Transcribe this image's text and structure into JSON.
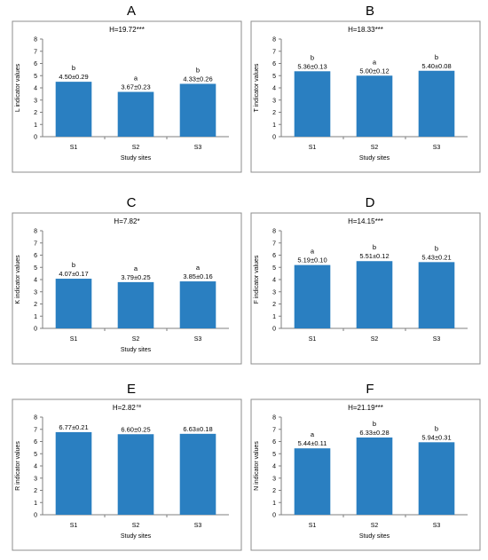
{
  "chart_data": [
    {
      "type": "bar",
      "panel_letter": "A",
      "title": "H=19.72***",
      "categories": [
        "S1",
        "S2",
        "S3"
      ],
      "values": [
        4.5,
        3.67,
        4.33
      ],
      "value_labels": [
        "4.50±0.29",
        "3.67±0.23",
        "4.33±0.26"
      ],
      "significance_letters": [
        "b",
        "a",
        "b"
      ],
      "xlabel": "Study sites",
      "ylabel": "L indicator values",
      "ylim": [
        0,
        8
      ],
      "yticks": [
        "0",
        "1",
        "2",
        "3",
        "4",
        "5",
        "6",
        "7",
        "8"
      ],
      "bar_color": "#2a7fc1",
      "grid": false,
      "legend": "none"
    },
    {
      "type": "bar",
      "panel_letter": "B",
      "title": "H=18.33***",
      "categories": [
        "S1",
        "S2",
        "S3"
      ],
      "values": [
        5.36,
        5.0,
        5.4
      ],
      "value_labels": [
        "5.36±0.13",
        "5.00±0.12",
        "5.40±0.08"
      ],
      "significance_letters": [
        "b",
        "a",
        "b"
      ],
      "xlabel": "Study sites",
      "ylabel": "T indicator values",
      "ylim": [
        0,
        8
      ],
      "yticks": [
        "0",
        "1",
        "2",
        "3",
        "4",
        "5",
        "6",
        "7",
        "8"
      ],
      "bar_color": "#2a7fc1",
      "grid": false,
      "legend": "none"
    },
    {
      "type": "bar",
      "panel_letter": "C",
      "title": "H=7.82*",
      "categories": [
        "S1",
        "S2",
        "S3"
      ],
      "values": [
        4.07,
        3.79,
        3.85
      ],
      "value_labels": [
        "4.07±0.17",
        "3.79±0.25",
        "3.85±0.16"
      ],
      "significance_letters": [
        "b",
        "a",
        "a"
      ],
      "xlabel": "Study sites",
      "ylabel": "K indicator values",
      "ylim": [
        0,
        8
      ],
      "yticks": [
        "0",
        "1",
        "2",
        "3",
        "4",
        "5",
        "6",
        "7",
        "8"
      ],
      "bar_color": "#2a7fc1",
      "grid": false,
      "legend": "none"
    },
    {
      "type": "bar",
      "panel_letter": "D",
      "title": "H=14.15***",
      "categories": [
        "S1",
        "S2",
        "S3"
      ],
      "values": [
        5.19,
        5.51,
        5.43
      ],
      "value_labels": [
        "5.19±0.10",
        "5.51±0.12",
        "5.43±0.21"
      ],
      "significance_letters": [
        "a",
        "b",
        "b"
      ],
      "xlabel": "",
      "ylabel": "F indicator values",
      "ylim": [
        0,
        8
      ],
      "yticks": [
        "0",
        "1",
        "2",
        "3",
        "4",
        "5",
        "6",
        "7",
        "8"
      ],
      "bar_color": "#2a7fc1",
      "grid": false,
      "legend": "none"
    },
    {
      "type": "bar",
      "panel_letter": "E",
      "title": "H=2.82 ns",
      "categories": [
        "S1",
        "S2",
        "S3"
      ],
      "values": [
        6.77,
        6.6,
        6.63
      ],
      "value_labels": [
        "6.77±0.21",
        "6.60±0.25",
        "6.63±0.18"
      ],
      "significance_letters": [
        "",
        "",
        ""
      ],
      "xlabel": "Study sites",
      "ylabel": "R indicator values",
      "ylim": [
        0,
        8
      ],
      "yticks": [
        "0",
        "1",
        "2",
        "3",
        "4",
        "5",
        "6",
        "7",
        "8"
      ],
      "bar_color": "#2a7fc1",
      "grid": false,
      "legend": "none"
    },
    {
      "type": "bar",
      "panel_letter": "F",
      "title": "H=21.19***",
      "categories": [
        "S1",
        "S2",
        "S3"
      ],
      "values": [
        5.44,
        6.33,
        5.94
      ],
      "value_labels": [
        "5.44±0.11",
        "6.33±0.28",
        "5.94±0.31"
      ],
      "significance_letters": [
        "a",
        "b",
        "b"
      ],
      "xlabel": "Study sites",
      "ylabel": "N indicator values",
      "ylim": [
        0,
        8
      ],
      "yticks": [
        "0",
        "1",
        "2",
        "3",
        "4",
        "5",
        "6",
        "7",
        "8"
      ],
      "bar_color": "#2a7fc1",
      "grid": false,
      "legend": "none"
    }
  ]
}
